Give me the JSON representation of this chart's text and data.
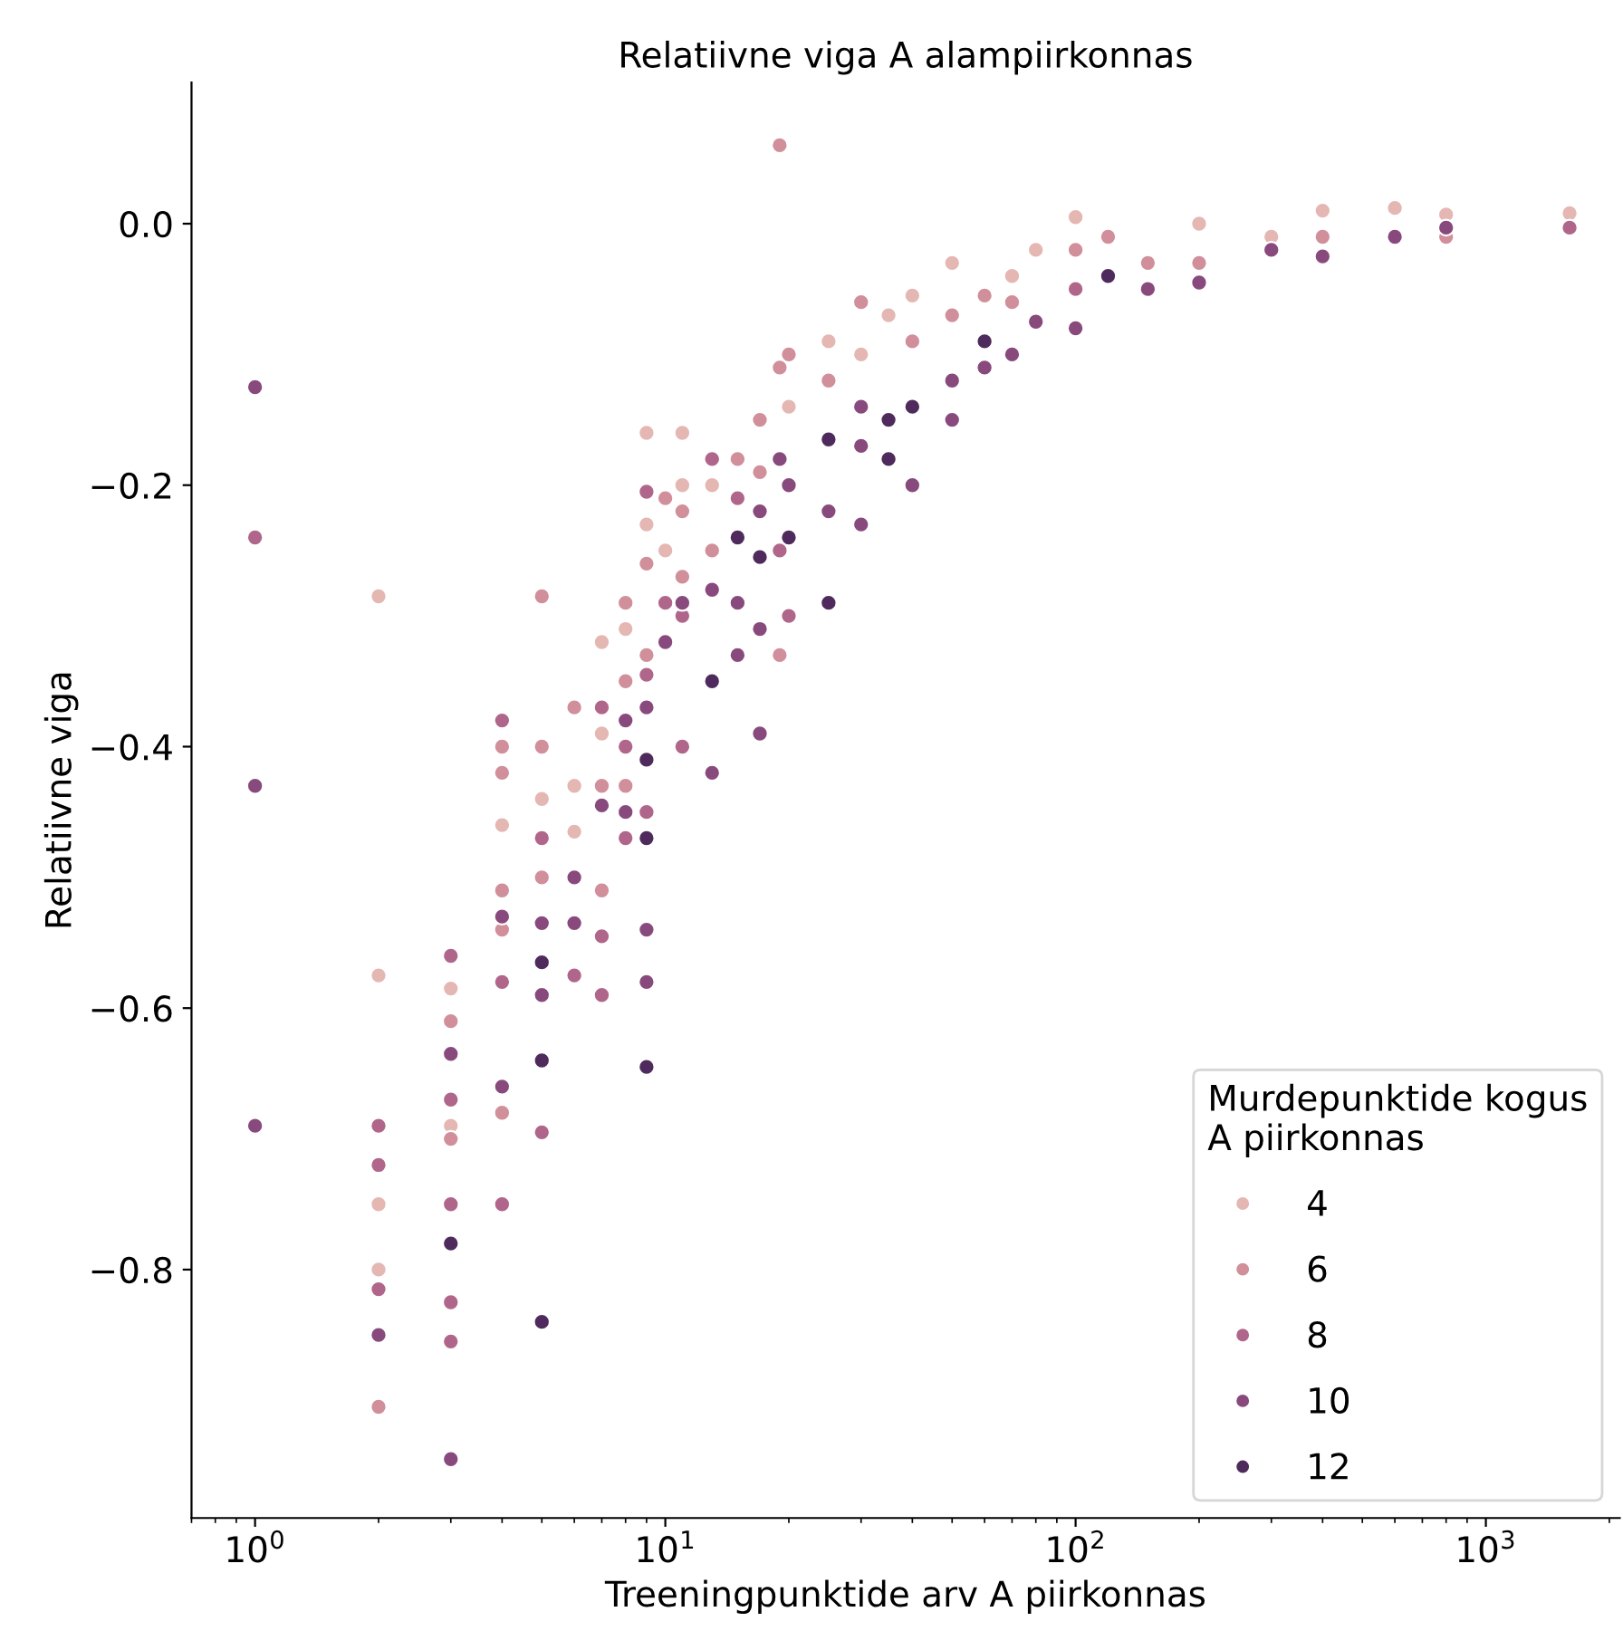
{
  "chart_data": {
    "type": "scatter",
    "title": "Relatiivne viga A alampiirkonnas",
    "xlabel": "Treeningpunktide arv A piirkonnas",
    "ylabel": "Relatiivne viga",
    "legend_title": "Murdepunktide kogus\nA piirkonnas",
    "log": "x",
    "grid": false,
    "legend": "bottom right",
    "marker": "circle",
    "xlim": [
      0.7,
      2120
    ],
    "xticks": [
      {
        "value": 1,
        "label": "10$^{0}$"
      },
      {
        "value": 10,
        "label": "10$^{1}$"
      },
      {
        "value": 100,
        "label": "10$^{2}$"
      },
      {
        "value": 1000,
        "label": "10$^{3}$"
      }
    ],
    "ylim": [
      -0.99,
      0.108
    ],
    "yticks": [
      {
        "value": -0.8,
        "label": "−0.8"
      },
      {
        "value": -0.6,
        "label": "−0.6"
      },
      {
        "value": -0.4,
        "label": "−0.4"
      },
      {
        "value": -0.2,
        "label": "−0.2"
      },
      {
        "value": 0,
        "label": "0.0"
      }
    ],
    "series": [
      {
        "name": "4",
        "color": "#e4b7b3",
        "x": [
          2,
          2,
          2,
          2,
          3,
          3,
          4,
          5,
          6,
          6,
          7,
          7,
          8,
          9,
          9,
          10,
          11,
          11,
          13,
          20,
          25,
          30,
          35,
          40,
          50,
          70,
          80,
          100,
          200,
          300,
          400,
          600,
          800,
          1600
        ],
        "values": [
          -0.285,
          -0.575,
          -0.75,
          -0.8,
          -0.585,
          -0.69,
          -0.46,
          -0.44,
          -0.43,
          -0.465,
          -0.32,
          -0.39,
          -0.31,
          -0.16,
          -0.23,
          -0.25,
          -0.16,
          -0.2,
          -0.2,
          -0.14,
          -0.09,
          -0.1,
          -0.07,
          -0.055,
          -0.03,
          -0.04,
          -0.02,
          0.005,
          0.0,
          -0.01,
          0.01,
          0.012,
          0.007,
          0.008
        ]
      },
      {
        "name": "6",
        "color": "#d08f9a",
        "x": [
          2,
          3,
          3,
          4,
          4,
          4,
          4,
          4,
          5,
          5,
          5,
          6,
          7,
          7,
          8,
          8,
          8,
          9,
          9,
          10,
          11,
          11,
          13,
          15,
          17,
          17,
          19,
          19,
          19,
          20,
          25,
          30,
          40,
          50,
          60,
          70,
          100,
          120,
          150,
          200,
          400,
          800
        ],
        "values": [
          -0.905,
          -0.61,
          -0.7,
          -0.4,
          -0.42,
          -0.51,
          -0.54,
          -0.68,
          -0.285,
          -0.4,
          -0.5,
          -0.37,
          -0.43,
          -0.51,
          -0.29,
          -0.35,
          -0.43,
          -0.26,
          -0.33,
          -0.21,
          -0.22,
          -0.27,
          -0.25,
          -0.18,
          -0.15,
          -0.19,
          0.06,
          -0.11,
          -0.33,
          -0.1,
          -0.12,
          -0.06,
          -0.09,
          -0.07,
          -0.055,
          -0.06,
          -0.02,
          -0.01,
          -0.03,
          -0.03,
          -0.01,
          -0.01
        ]
      },
      {
        "name": "8",
        "color": "#b0668a",
        "x": [
          1,
          2,
          2,
          2,
          3,
          3,
          3,
          3,
          3,
          4,
          4,
          4,
          5,
          5,
          6,
          7,
          7,
          7,
          8,
          8,
          9,
          9,
          9,
          10,
          11,
          11,
          13,
          15,
          19,
          20,
          100,
          1600
        ],
        "values": [
          -0.24,
          -0.69,
          -0.72,
          -0.815,
          -0.56,
          -0.67,
          -0.75,
          -0.825,
          -0.855,
          -0.38,
          -0.58,
          -0.75,
          -0.47,
          -0.695,
          -0.575,
          -0.37,
          -0.545,
          -0.59,
          -0.4,
          -0.47,
          -0.205,
          -0.345,
          -0.45,
          -0.29,
          -0.3,
          -0.4,
          -0.18,
          -0.21,
          -0.25,
          -0.3,
          -0.05,
          -0.003
        ]
      },
      {
        "name": "10",
        "color": "#884a7d",
        "x": [
          1,
          1,
          1,
          2,
          3,
          3,
          4,
          4,
          5,
          5,
          6,
          6,
          7,
          8,
          8,
          9,
          9,
          9,
          10,
          11,
          13,
          13,
          15,
          15,
          17,
          17,
          17,
          19,
          20,
          25,
          30,
          30,
          30,
          40,
          50,
          50,
          60,
          70,
          80,
          100,
          150,
          200,
          300,
          400,
          600,
          800
        ],
        "values": [
          -0.125,
          -0.43,
          -0.69,
          -0.85,
          -0.635,
          -0.945,
          -0.53,
          -0.66,
          -0.535,
          -0.59,
          -0.5,
          -0.535,
          -0.445,
          -0.38,
          -0.45,
          -0.37,
          -0.54,
          -0.58,
          -0.32,
          -0.29,
          -0.28,
          -0.42,
          -0.29,
          -0.33,
          -0.22,
          -0.31,
          -0.39,
          -0.18,
          -0.2,
          -0.22,
          -0.14,
          -0.17,
          -0.23,
          -0.2,
          -0.12,
          -0.15,
          -0.11,
          -0.1,
          -0.075,
          -0.08,
          -0.05,
          -0.045,
          -0.02,
          -0.025,
          -0.01,
          -0.003
        ]
      },
      {
        "name": "12",
        "color": "#4e2b5c",
        "x": [
          3,
          5,
          5,
          5,
          9,
          9,
          9,
          13,
          15,
          17,
          20,
          25,
          25,
          35,
          35,
          40,
          60,
          120
        ],
        "values": [
          -0.78,
          -0.565,
          -0.64,
          -0.84,
          -0.41,
          -0.47,
          -0.645,
          -0.35,
          -0.24,
          -0.255,
          -0.24,
          -0.165,
          -0.29,
          -0.15,
          -0.18,
          -0.14,
          -0.09,
          -0.04
        ]
      }
    ]
  }
}
